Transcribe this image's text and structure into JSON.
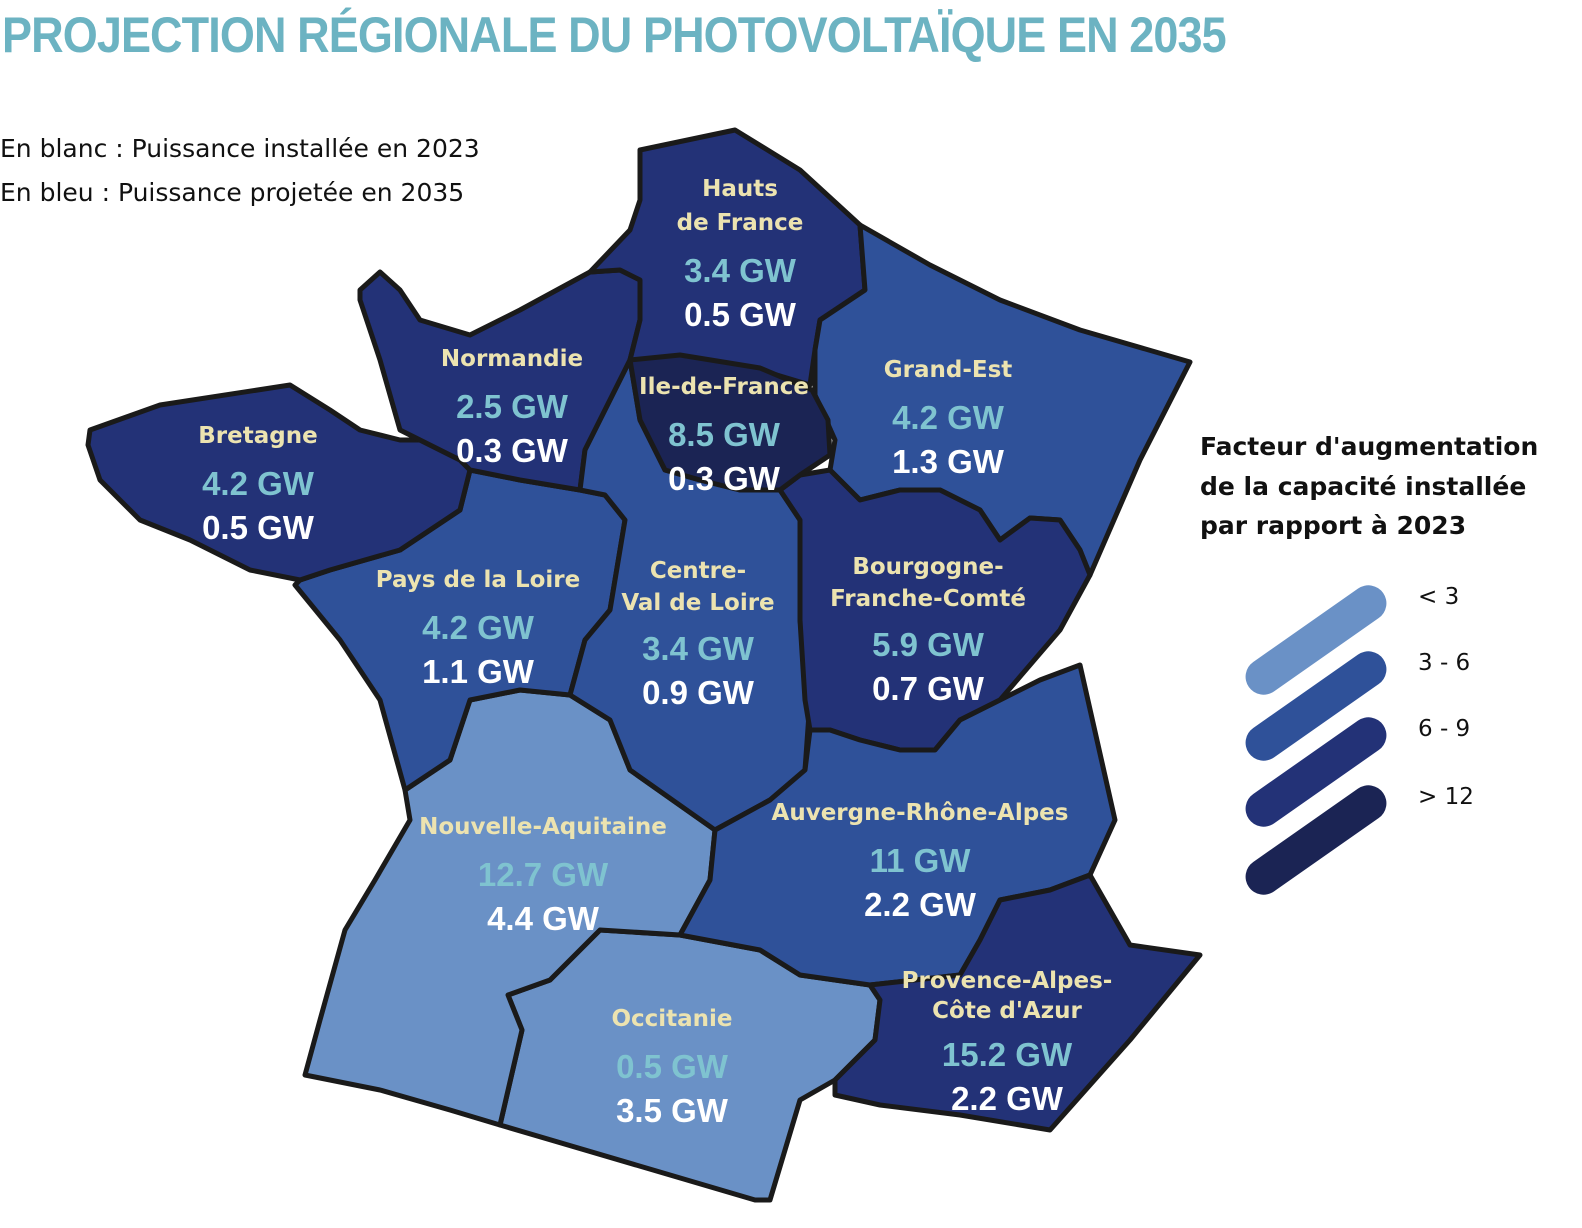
{
  "title": "PROJECTION RÉGIONALE DU PHOTOVOLTAÏQUE EN 2035",
  "notes": [
    "En blanc : Puissance installée en 2023",
    "En bleu : Puissance projetée en 2035"
  ],
  "colors": {
    "title": "#6cb3c2",
    "region_name": "#ece3b0",
    "projected": "#7fc3d0",
    "installed": "#ffffff",
    "border": "#1a1a1a",
    "lt3": "#6a91c6",
    "r3to6": "#2f5199",
    "r6to9": "#233277",
    "gt12": "#1b2454"
  },
  "legend": {
    "title_lines": [
      "Facteur d'augmentation",
      "de la capacité installée",
      "par rapport à 2023"
    ],
    "items": [
      {
        "label": "< 3",
        "color": "#6a91c6"
      },
      {
        "label": "3  -  6",
        "color": "#2f5199"
      },
      {
        "label": "6  -  9",
        "color": "#233277"
      },
      {
        "label": "> 12",
        "color": "#1b2454"
      }
    ]
  },
  "regions": [
    {
      "id": "hauts-de-france",
      "name_lines": [
        "Hauts",
        "de France"
      ],
      "projected": "3.4 GW",
      "installed": "0.5 GW",
      "color": "#233277"
    },
    {
      "id": "normandie",
      "name_lines": [
        "Normandie"
      ],
      "projected": "2.5 GW",
      "installed": "0.3 GW",
      "color": "#233277"
    },
    {
      "id": "bretagne",
      "name_lines": [
        "Bretagne"
      ],
      "projected": "4.2 GW",
      "installed": "0.5 GW",
      "color": "#233277"
    },
    {
      "id": "ile-de-france",
      "name_lines": [
        "Ile-de-France"
      ],
      "projected": "8.5 GW",
      "installed": "0.3 GW",
      "color": "#1b2454"
    },
    {
      "id": "grand-est",
      "name_lines": [
        "Grand-Est"
      ],
      "projected": "4.2 GW",
      "installed": "1.3 GW",
      "color": "#2f5199"
    },
    {
      "id": "pays-de-la-loire",
      "name_lines": [
        "Pays de la Loire"
      ],
      "projected": "4.2 GW",
      "installed": "1.1 GW",
      "color": "#2f5199"
    },
    {
      "id": "centre-val-de-loire",
      "name_lines": [
        "Centre-",
        "Val de Loire"
      ],
      "projected": "3.4 GW",
      "installed": "0.9 GW",
      "color": "#2f5199"
    },
    {
      "id": "bourgogne-franche-comte",
      "name_lines": [
        "Bourgogne-",
        "Franche-Comté"
      ],
      "projected": "5.9 GW",
      "installed": "0.7 GW",
      "color": "#233277"
    },
    {
      "id": "nouvelle-aquitaine",
      "name_lines": [
        "Nouvelle-Aquitaine"
      ],
      "projected": "12.7 GW",
      "installed": "4.4 GW",
      "color": "#6a91c6"
    },
    {
      "id": "auvergne-rhone-alpes",
      "name_lines": [
        "Auvergne-Rhône-Alpes"
      ],
      "projected": "11 GW",
      "installed": "2.2 GW",
      "color": "#2f5199"
    },
    {
      "id": "occitanie",
      "name_lines": [
        "Occitanie"
      ],
      "projected": "0.5 GW",
      "installed": "3.5 GW",
      "color": "#6a91c6"
    },
    {
      "id": "provence-alpes-cote-dazur",
      "name_lines": [
        "Provence-Alpes-",
        "Côte d'Azur"
      ],
      "projected": "15.2 GW",
      "installed": "2.2 GW",
      "color": "#233277"
    }
  ]
}
